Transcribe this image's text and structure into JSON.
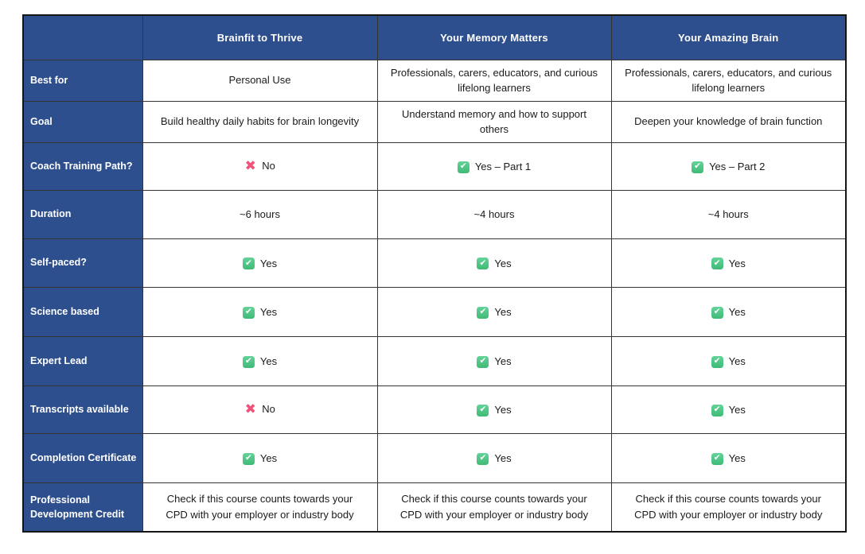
{
  "colors": {
    "header_blue": "#2e4f8e",
    "cell_text": "#1b1b1b",
    "check_green": "#41bb78",
    "cross_pink": "#f0527a",
    "border_dark": "#343434",
    "background": "#ffffff"
  },
  "table": {
    "corner_label": "",
    "columns": [
      "Brainfit to Thrive",
      "Your Memory Matters",
      "Your Amazing Brain"
    ],
    "rows": [
      {
        "label": "Best for",
        "cells": [
          {
            "icon": "",
            "text": "Personal Use"
          },
          {
            "icon": "",
            "text": "Professionals, carers, educators, and curious  lifelong learners"
          },
          {
            "icon": "",
            "text": "Professionals, carers, educators, and curious lifelong learners"
          }
        ]
      },
      {
        "label": "Goal",
        "cells": [
          {
            "icon": "",
            "text": "Build healthy daily habits for brain longevity"
          },
          {
            "icon": "",
            "text": "Understand memory and how to support others"
          },
          {
            "icon": "",
            "text": "Deepen your knowledge of brain function"
          }
        ]
      },
      {
        "label": "Coach Training Path?",
        "cells": [
          {
            "icon": "cross-icon",
            "text": "No"
          },
          {
            "icon": "check-icon",
            "text": "Yes – Part 1"
          },
          {
            "icon": "check-icon",
            "text": "Yes – Part 2"
          }
        ]
      },
      {
        "label": "Duration",
        "cells": [
          {
            "icon": "",
            "text": "~6 hours"
          },
          {
            "icon": "",
            "text": "~4 hours"
          },
          {
            "icon": "",
            "text": "~4 hours"
          }
        ]
      },
      {
        "label": "Self-paced?",
        "cells": [
          {
            "icon": "check-icon",
            "text": "Yes"
          },
          {
            "icon": "check-icon",
            "text": "Yes"
          },
          {
            "icon": "check-icon",
            "text": "Yes"
          }
        ]
      },
      {
        "label": "Science based",
        "cells": [
          {
            "icon": "check-icon",
            "text": "Yes"
          },
          {
            "icon": "check-icon",
            "text": "Yes"
          },
          {
            "icon": "check-icon",
            "text": "Yes"
          }
        ]
      },
      {
        "label": "Expert Lead",
        "cells": [
          {
            "icon": "check-icon",
            "text": "Yes"
          },
          {
            "icon": "check-icon",
            "text": "Yes"
          },
          {
            "icon": "check-icon",
            "text": "Yes"
          }
        ]
      },
      {
        "label": "Transcripts available",
        "cells": [
          {
            "icon": "cross-icon",
            "text": "No"
          },
          {
            "icon": "check-icon",
            "text": "Yes"
          },
          {
            "icon": "check-icon",
            "text": "Yes"
          }
        ]
      },
      {
        "label": "Completion Certificate",
        "cells": [
          {
            "icon": "check-icon",
            "text": "Yes"
          },
          {
            "icon": "check-icon",
            "text": "Yes"
          },
          {
            "icon": "check-icon",
            "text": "Yes"
          }
        ]
      },
      {
        "label": "Professional Development Credit",
        "cells": [
          {
            "icon": "",
            "text": "Check if this course counts towards your CPD with your employer or industry body"
          },
          {
            "icon": "",
            "text": "Check if this course counts towards your CPD with your employer or industry body"
          },
          {
            "icon": "",
            "text": "Check if this course counts towards your CPD with your employer or industry body"
          }
        ]
      }
    ]
  }
}
